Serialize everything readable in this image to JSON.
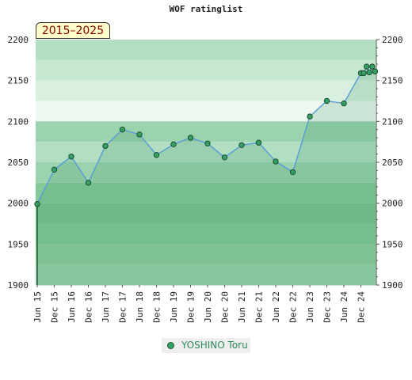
{
  "chart_data": {
    "type": "line",
    "title": "WOF ratinglist",
    "badge": "2015–2025",
    "x_tick_labels": [
      "Jun 15",
      "Dec 15",
      "Jun 16",
      "Dec 16",
      "Jun 17",
      "Dec 17",
      "Jun 18",
      "Dec 18",
      "Jun 19",
      "Dec 19",
      "Jun 20",
      "Dec 20",
      "Jun 21",
      "Dec 21",
      "Jun 22",
      "Dec 22",
      "Jun 23",
      "Dec 23",
      "Jun 24",
      "Dec 24"
    ],
    "ylim": [
      1900,
      2200
    ],
    "y_ticks": [
      1900,
      1950,
      2000,
      2050,
      2100,
      2150,
      2200
    ],
    "series": [
      {
        "name": "YOSHINO Toru",
        "color": "#33a066",
        "line_color": "#5a9fd4",
        "points": [
          {
            "x": "Jun 15",
            "y": 1999
          },
          {
            "x": "Dec 15",
            "y": 2041
          },
          {
            "x": "Jun 16",
            "y": 2057
          },
          {
            "x": "Dec 16",
            "y": 2025
          },
          {
            "x": "Jun 17",
            "y": 2070
          },
          {
            "x": "Dec 17",
            "y": 2090
          },
          {
            "x": "Jun 18",
            "y": 2084
          },
          {
            "x": "Dec 18",
            "y": 2059
          },
          {
            "x": "Jun 19",
            "y": 2072
          },
          {
            "x": "Dec 19",
            "y": 2080
          },
          {
            "x": "Jun 20",
            "y": 2073
          },
          {
            "x": "Dec 20",
            "y": 2056
          },
          {
            "x": "Jun 21",
            "y": 2071
          },
          {
            "x": "Dec 21",
            "y": 2074
          },
          {
            "x": "Jun 22",
            "y": 2051
          },
          {
            "x": "Dec 22",
            "y": 2038
          },
          {
            "x": "Jun 23",
            "y": 2106
          },
          {
            "x": "Dec 23",
            "y": 2125
          },
          {
            "x": "Jun 24",
            "y": 2122
          },
          {
            "x": "Dec 24",
            "y": 2159
          },
          {
            "x": "Jan 25",
            "y": 2159
          },
          {
            "x": "Feb 25",
            "y": 2167
          },
          {
            "x": "Mar 25",
            "y": 2160
          },
          {
            "x": "Apr 25",
            "y": 2167
          },
          {
            "x": "May 25",
            "y": 2161
          }
        ]
      }
    ]
  }
}
